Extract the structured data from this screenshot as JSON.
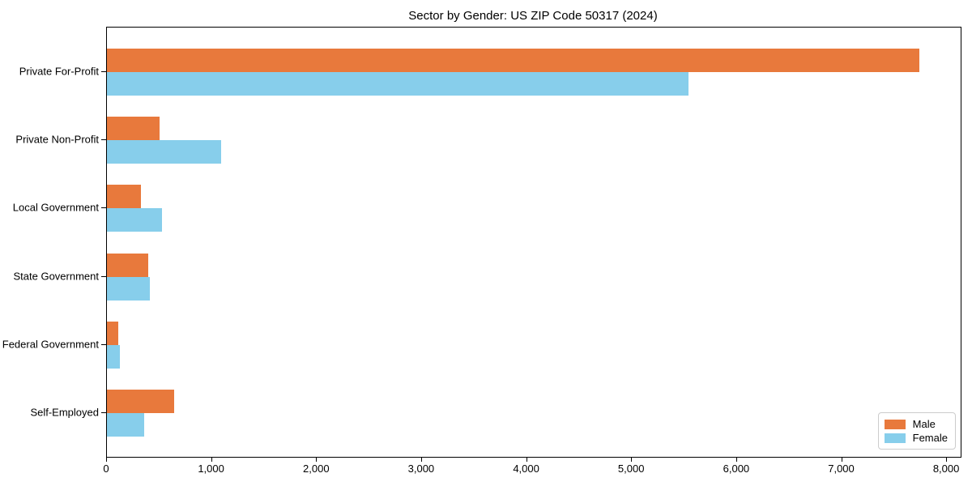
{
  "chart": {
    "title": "Sector by Gender: US ZIP Code 50317 (2024)",
    "chart_data": {
      "type": "bar",
      "orientation": "horizontal",
      "categories": [
        "Private For-Profit",
        "Private Non-Profit",
        "Local Government",
        "State Government",
        "Federal Government",
        "Self-Employed"
      ],
      "series": [
        {
          "name": "Male",
          "color": "#E8793C",
          "values": [
            7740,
            500,
            325,
            390,
            110,
            640
          ]
        },
        {
          "name": "Female",
          "color": "#87CEEB",
          "values": [
            5540,
            1085,
            525,
            405,
            120,
            355
          ]
        }
      ],
      "xlabel": "",
      "ylabel": "",
      "xlim": [
        0,
        8130
      ],
      "xticks": [
        0,
        1000,
        2000,
        3000,
        4000,
        5000,
        6000,
        7000,
        8000
      ],
      "xtick_labels": [
        "0",
        "1,000",
        "2,000",
        "3,000",
        "4,000",
        "5,000",
        "6,000",
        "7,000",
        "8,000"
      ],
      "grid": false,
      "legend": {
        "position": "lower right"
      }
    }
  }
}
